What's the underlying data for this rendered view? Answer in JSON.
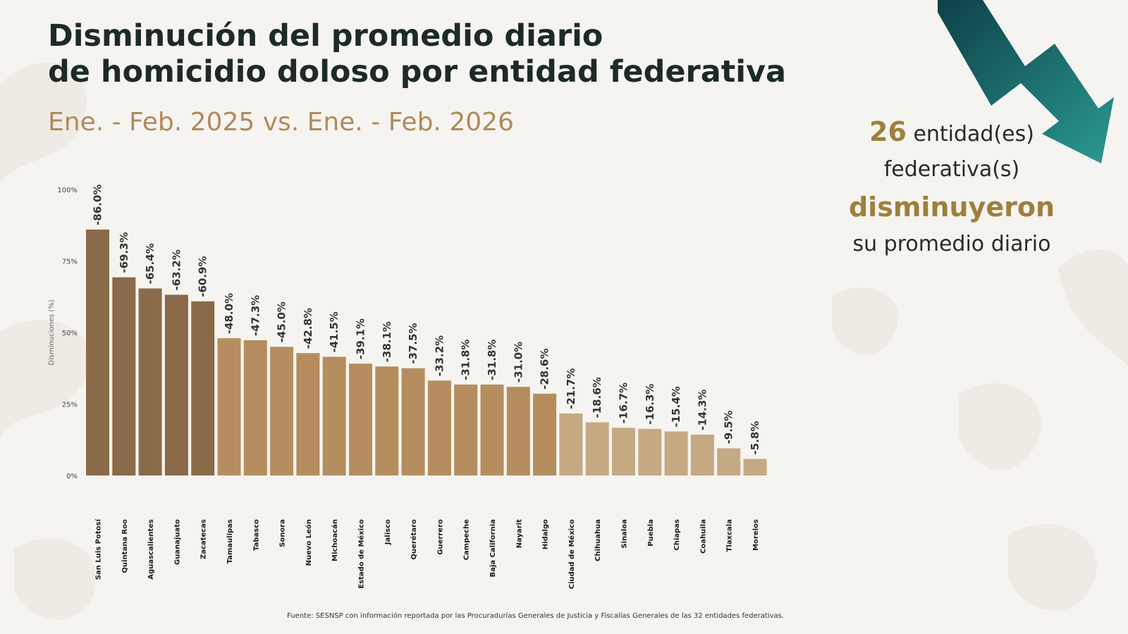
{
  "header": {
    "title_line1": "Disminución del promedio diario",
    "title_line2": "de homicidio doloso por entidad federativa",
    "subtitle": "Ene. - Feb. 2025 vs. Ene. - Feb. 2026"
  },
  "callout": {
    "count": "26",
    "text1": "entidad(es)",
    "text2": "federativa(s)",
    "highlight": "disminuyeron",
    "text3": "su promedio diario"
  },
  "footnote": "Fuente: SESNSP con información reportada por las Procuradurías Generales de Justicia y Fiscalías Generales de las 32 entidades federativas.",
  "colors": {
    "title": "#1c2b27",
    "subtitle": "#b08a5a",
    "highlight": "#9e7f3d",
    "bar_dark": "#8a6a48",
    "bar_mid": "#b58d5f",
    "bar_light": "#c5a982",
    "arrow_dark": "#0d3f47",
    "arrow_light": "#2a9a90"
  },
  "chart_data": {
    "type": "bar",
    "ylabel": "Disminuciones (%)",
    "ylim": [
      0,
      100
    ],
    "yticks": [
      0,
      25,
      50,
      75,
      100
    ],
    "ytick_labels": [
      "0%",
      "25%",
      "50%",
      "75%",
      "100%"
    ],
    "grid": false,
    "categories": [
      "San Luis Potosí",
      "Quintana Roo",
      "Aguascalientes",
      "Guanajuato",
      "Zacatecas",
      "Tamaulipas",
      "Tabasco",
      "Sonora",
      "Nuevo León",
      "Michoacán",
      "Estado de México",
      "Jalisco",
      "Querétaro",
      "Guerrero",
      "Campeche",
      "Baja California",
      "Nayarit",
      "Hidalgo",
      "Ciudad de México",
      "Chihuahua",
      "Sinaloa",
      "Puebla",
      "Chiapas",
      "Coahuila",
      "Tlaxcala",
      "Morelos"
    ],
    "values": [
      86.0,
      69.3,
      65.4,
      63.2,
      60.9,
      48.0,
      47.3,
      45.0,
      42.8,
      41.5,
      39.1,
      38.1,
      37.5,
      33.2,
      31.8,
      31.8,
      31.0,
      28.6,
      21.7,
      18.6,
      16.7,
      16.3,
      15.4,
      14.3,
      9.5,
      5.8
    ],
    "data_labels": [
      "-86.0%",
      "-69.3%",
      "-65.4%",
      "-63.2%",
      "-60.9%",
      "-48.0%",
      "-47.3%",
      "-45.0%",
      "-42.8%",
      "-41.5%",
      "-39.1%",
      "-38.1%",
      "-37.5%",
      "-33.2%",
      "-31.8%",
      "-31.8%",
      "-31.0%",
      "-28.6%",
      "-21.7%",
      "-18.6%",
      "-16.7%",
      "-16.3%",
      "-15.4%",
      "-14.3%",
      "-9.5%",
      "-5.8%"
    ],
    "tone": [
      "dark",
      "dark",
      "dark",
      "dark",
      "dark",
      "mid",
      "mid",
      "mid",
      "mid",
      "mid",
      "mid",
      "mid",
      "mid",
      "mid",
      "mid",
      "mid",
      "mid",
      "mid",
      "light",
      "light",
      "light",
      "light",
      "light",
      "light",
      "light",
      "light"
    ]
  }
}
